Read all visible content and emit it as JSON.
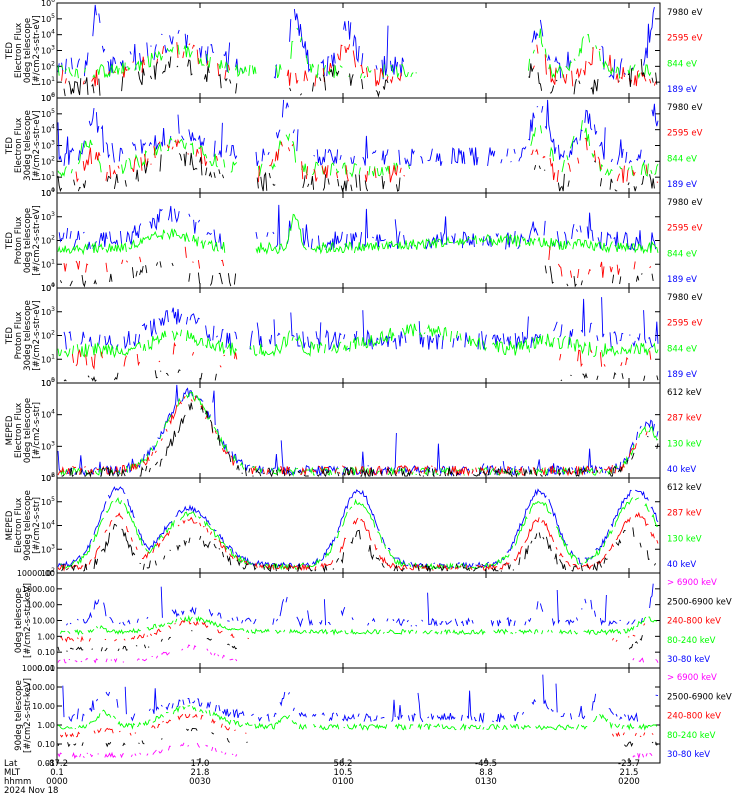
{
  "colors": {
    "black": "#000000",
    "red": "#ff0000",
    "green": "#00ff00",
    "blue": "#0000ff",
    "magenta": "#ff00ff"
  },
  "footer": {
    "row_labels": [
      "Lat",
      "MLT",
      "hhmm",
      "2024 Nov 18"
    ],
    "columns": [
      {
        "lat": "-87.2",
        "mlt": "0.1",
        "hhmm": "0000"
      },
      {
        "lat": "17.0",
        "mlt": "21.8",
        "hhmm": "0030"
      },
      {
        "lat": "56.2",
        "mlt": "10.5",
        "hhmm": "0100"
      },
      {
        "lat": "-49.5",
        "mlt": "8.8",
        "hhmm": "0130"
      },
      {
        "lat": "-23.7",
        "mlt": "21.5",
        "hhmm": "0200"
      }
    ]
  },
  "chart_data": [
    {
      "type": "line",
      "ylabel": [
        "TED",
        "Electron Flux",
        "0deg telescope",
        "[#/cm2-s-str-eV]"
      ],
      "yscale": "log",
      "yticks": [
        "10^0",
        "10^1",
        "10^2",
        "10^3",
        "10^4",
        "10^5",
        "10^6"
      ],
      "legend": [
        {
          "label": "7980 eV",
          "color": "black"
        },
        {
          "label": "2595 eV",
          "color": "red"
        },
        {
          "label": "844 eV",
          "color": "green"
        },
        {
          "label": "189 eV",
          "color": "blue"
        }
      ]
    },
    {
      "type": "line",
      "ylabel": [
        "TED",
        "Electron Flux",
        "30deg telescope",
        "[#/cm2-s-str-eV]"
      ],
      "yscale": "log",
      "yticks": [
        "10^0",
        "10^1",
        "10^2",
        "10^3",
        "10^4",
        "10^5",
        "10^6"
      ],
      "legend": [
        {
          "label": "7980 eV",
          "color": "black"
        },
        {
          "label": "2595 eV",
          "color": "red"
        },
        {
          "label": "844 eV",
          "color": "green"
        },
        {
          "label": "189 eV",
          "color": "blue"
        }
      ]
    },
    {
      "type": "line",
      "ylabel": [
        "TED",
        "Proton Flux",
        "0deg telescope",
        "[#/cm2-s-str-eV]"
      ],
      "yscale": "log",
      "yticks": [
        "10^0",
        "10^1",
        "10^2",
        "10^3",
        "10^4"
      ],
      "legend": [
        {
          "label": "7980 eV",
          "color": "black"
        },
        {
          "label": "2595 eV",
          "color": "red"
        },
        {
          "label": "844 eV",
          "color": "green"
        },
        {
          "label": "189 eV",
          "color": "blue"
        }
      ]
    },
    {
      "type": "line",
      "ylabel": [
        "TED",
        "Proton Flux",
        "30deg telescope",
        "[#/cm2-s-str-eV]"
      ],
      "yscale": "log",
      "yticks": [
        "10^0",
        "10^1",
        "10^2",
        "10^3",
        "10^4"
      ],
      "legend": [
        {
          "label": "7980 eV",
          "color": "black"
        },
        {
          "label": "2595 eV",
          "color": "red"
        },
        {
          "label": "844 eV",
          "color": "green"
        },
        {
          "label": "189 eV",
          "color": "blue"
        }
      ]
    },
    {
      "type": "line",
      "ylabel": [
        "MEPED",
        "Electron Flux",
        "0deg telescope",
        "[#/cm2-s-str]"
      ],
      "yscale": "log",
      "yticks": [
        "10^2",
        "10^3",
        "10^4",
        "10^5"
      ],
      "legend": [
        {
          "label": "612 keV",
          "color": "black"
        },
        {
          "label": "287 keV",
          "color": "red"
        },
        {
          "label": "130 keV",
          "color": "green"
        },
        {
          "label": "40 keV",
          "color": "blue"
        }
      ]
    },
    {
      "type": "line",
      "ylabel": [
        "MEPED",
        "Electron Flux",
        "90deg telescope",
        "[#/cm2-s-str]"
      ],
      "yscale": "log",
      "yticks": [
        "10^2",
        "10^3",
        "10^4",
        "10^5",
        "10^6"
      ],
      "legend": [
        {
          "label": "612 keV",
          "color": "black"
        },
        {
          "label": "287 keV",
          "color": "red"
        },
        {
          "label": "130 keV",
          "color": "green"
        },
        {
          "label": "40 keV",
          "color": "blue"
        }
      ]
    },
    {
      "type": "line",
      "ylabel": [
        "0deg telescope",
        "[#/cm2-s-str-keV]"
      ],
      "yscale": "log",
      "yticks": [
        "0.01",
        "0.10",
        "1.00",
        "10.00",
        "100.00",
        "1000.00",
        "10000.00"
      ],
      "legend": [
        {
          "label": "> 6900 keV",
          "color": "magenta"
        },
        {
          "label": "2500-6900 keV",
          "color": "black"
        },
        {
          "label": "240-800 keV",
          "color": "red"
        },
        {
          "label": "80-240 keV",
          "color": "green"
        },
        {
          "label": "30-80 keV",
          "color": "blue"
        }
      ]
    },
    {
      "type": "line",
      "ylabel": [
        "90deg telescope",
        "[#/cm2-s-str-keV]"
      ],
      "yscale": "log",
      "yticks": [
        "0.01",
        "0.10",
        "1.00",
        "10.00",
        "100.00",
        "1000.00"
      ],
      "legend": [
        {
          "label": "> 6900 keV",
          "color": "magenta"
        },
        {
          "label": "2500-6900 keV",
          "color": "black"
        },
        {
          "label": "240-800 keV",
          "color": "red"
        },
        {
          "label": "80-240 keV",
          "color": "green"
        },
        {
          "label": "30-80 keV",
          "color": "blue"
        }
      ]
    }
  ]
}
